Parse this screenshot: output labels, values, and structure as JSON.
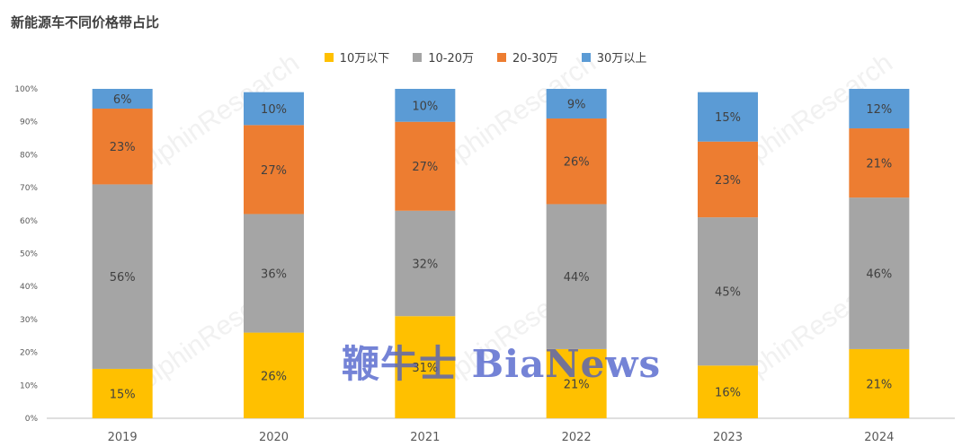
{
  "title": "新能源车不同价格带占比",
  "watermark": "鞭牛士 BiaNews",
  "background_watermark": "olphinResearch",
  "chart_data": {
    "type": "bar",
    "stacked": true,
    "categories": [
      "2019",
      "2020",
      "2021",
      "2022",
      "2023",
      "2024"
    ],
    "series": [
      {
        "name": "10万以下",
        "color": "#FFC000",
        "values": [
          15,
          26,
          31,
          21,
          16,
          21
        ]
      },
      {
        "name": "10-20万",
        "color": "#A5A5A5",
        "values": [
          56,
          36,
          32,
          44,
          45,
          46
        ]
      },
      {
        "name": "20-30万",
        "color": "#ED7D31",
        "values": [
          23,
          27,
          27,
          26,
          23,
          21
        ]
      },
      {
        "name": "30万以上",
        "color": "#5B9BD5",
        "values": [
          6,
          10,
          10,
          9,
          15,
          12
        ]
      }
    ],
    "y_ticks": [
      "0%",
      "10%",
      "20%",
      "30%",
      "40%",
      "50%",
      "60%",
      "70%",
      "80%",
      "90%",
      "100%"
    ],
    "ylim": [
      0,
      100
    ],
    "legend_position": "top-center",
    "grid": false
  }
}
